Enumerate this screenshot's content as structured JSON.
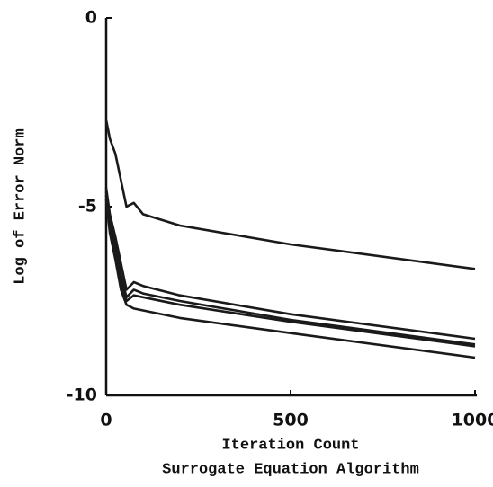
{
  "chart_data": {
    "type": "line",
    "x_label": "Iteration Count",
    "caption": "Surrogate Equation Algorithm",
    "y_label": "Log of Error Norm",
    "x": [
      0,
      10,
      25,
      40,
      55,
      75,
      100,
      200,
      500,
      1000
    ],
    "series": [
      {
        "color": "#1a1a1a",
        "values": [
          -2.7,
          -3.2,
          -3.6,
          -4.3,
          -5.0,
          -4.9,
          -5.2,
          -5.5,
          -6.0,
          -6.65
        ]
      },
      {
        "color": "#1a1a1a",
        "values": [
          -4.5,
          -5.2,
          -5.8,
          -6.5,
          -7.2,
          -7.0,
          -7.1,
          -7.35,
          -7.85,
          -8.5
        ]
      },
      {
        "color": "#1a1a1a",
        "values": [
          -4.6,
          -5.4,
          -6.0,
          -6.8,
          -7.4,
          -7.2,
          -7.3,
          -7.5,
          -8.0,
          -8.65
        ]
      },
      {
        "color": "#1a1a1a",
        "values": [
          -4.7,
          -5.5,
          -6.2,
          -7.0,
          -7.5,
          -7.35,
          -7.4,
          -7.6,
          -8.05,
          -8.7
        ]
      },
      {
        "color": "#1a1a1a",
        "values": [
          -4.8,
          -5.7,
          -6.4,
          -7.2,
          -7.6,
          -7.7,
          -7.75,
          -7.95,
          -8.35,
          -9.0
        ]
      }
    ],
    "xlim": [
      0,
      1000
    ],
    "xticks": [
      0,
      500,
      1000
    ],
    "ylim": [
      -10,
      0
    ],
    "yticks": [
      0,
      -5,
      -10
    ],
    "grid": false
  }
}
